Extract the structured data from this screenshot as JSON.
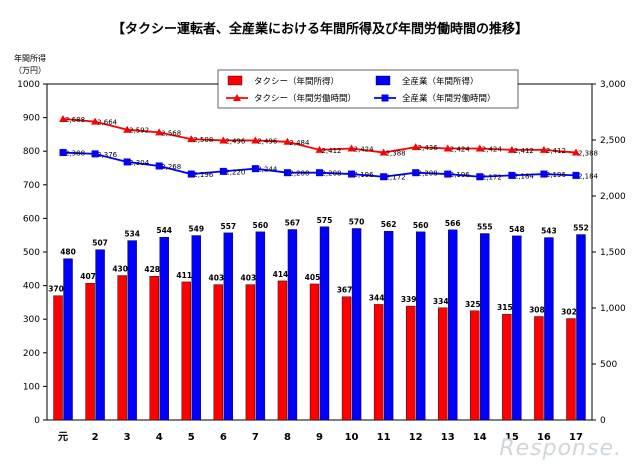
{
  "title": "【タクシー運転者、全産業における年間所得及び年間労働時間の推移】",
  "watermark": "Response.",
  "chart_data": {
    "type": "bar+line",
    "categories": [
      "元",
      "2",
      "3",
      "4",
      "5",
      "6",
      "7",
      "8",
      "9",
      "10",
      "11",
      "12",
      "13",
      "14",
      "15",
      "16",
      "17"
    ],
    "bar_series": [
      {
        "name": "タクシー（年間所得）",
        "color": "#ff0000",
        "values": [
          370,
          407,
          430,
          428,
          411,
          403,
          403,
          414,
          405,
          367,
          344,
          339,
          334,
          325,
          315,
          308,
          302
        ]
      },
      {
        "name": "全産業（年間所得）",
        "color": "#0000ff",
        "values": [
          480,
          507,
          534,
          544,
          549,
          557,
          560,
          567,
          575,
          570,
          562,
          560,
          566,
          555,
          548,
          543,
          552
        ]
      }
    ],
    "line_series": [
      {
        "name": "タクシー（年間労働時間）",
        "color": "#ff0000",
        "marker": "triangle",
        "values": [
          2688,
          2664,
          2592,
          2568,
          2508,
          2496,
          2496,
          2484,
          2412,
          2424,
          2388,
          2436,
          2424,
          2424,
          2412,
          2412,
          2388
        ]
      },
      {
        "name": "全産業（年間労働時間）",
        "color": "#0000ff",
        "marker": "square",
        "values": [
          2388,
          2376,
          2304,
          2268,
          2196,
          2220,
          2244,
          2208,
          2208,
          2196,
          2172,
          2208,
          2196,
          2172,
          2184,
          2196,
          2184
        ]
      }
    ],
    "ylabel_left": [
      "年間所得",
      "（万円）"
    ],
    "ylim_left": [
      0,
      1000
    ],
    "yticks_left": [
      0,
      100,
      200,
      300,
      400,
      500,
      600,
      700,
      800,
      900,
      1000
    ],
    "ylim_right": [
      0,
      3000
    ],
    "yticks_right": [
      "0",
      "500",
      "1,000",
      "1,500",
      "2,000",
      "2,500",
      "3,000"
    ],
    "grid": false,
    "legend_position": "top-center"
  }
}
